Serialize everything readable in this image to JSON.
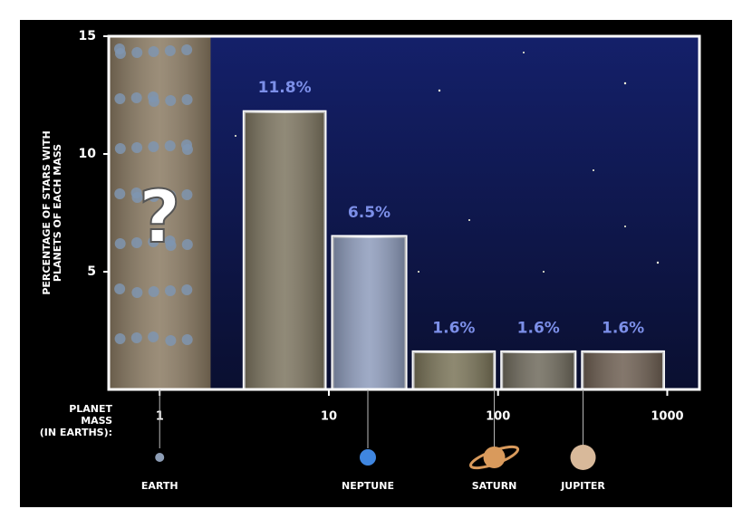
{
  "chart_data": {
    "type": "histogram",
    "bins": [
      3,
      10,
      30,
      100,
      300,
      1000
    ],
    "values": [
      11.8,
      6.5,
      1.6,
      1.6,
      1.6
    ],
    "value_labels": [
      "11.8%",
      "6.5%",
      "1.6%",
      "1.6%",
      "1.6%"
    ],
    "colors": [
      "#7d7560",
      "#8e9cbc",
      "#7a7458",
      "#6f6a5c",
      "#6e5f52"
    ],
    "xlim": [
      0.5,
      1550
    ],
    "ylim": [
      0,
      15
    ],
    "xticks": [
      1,
      10,
      100,
      1000
    ],
    "yticks": [
      5,
      10,
      15
    ],
    "log_x": true,
    "ylabel": [
      "PERCENTAGE OF STARS WITH",
      "PLANETS OF EACH MASS"
    ],
    "xlabel": [
      "PLANET",
      "MASS",
      "(IN EARTHS):"
    ],
    "annotations": [
      {
        "text": "?",
        "x": [
          0.5,
          2
        ]
      }
    ],
    "reference_planets": [
      {
        "name": "EARTH",
        "mass": 1,
        "color": "#8d9db5"
      },
      {
        "name": "NEPTUNE",
        "mass": 17,
        "color": "#3f86e0"
      },
      {
        "name": "SATURN",
        "mass": 95,
        "color": "#d99a5c"
      },
      {
        "name": "JUPITER",
        "mass": 318,
        "color": "#d8b99a"
      }
    ]
  }
}
